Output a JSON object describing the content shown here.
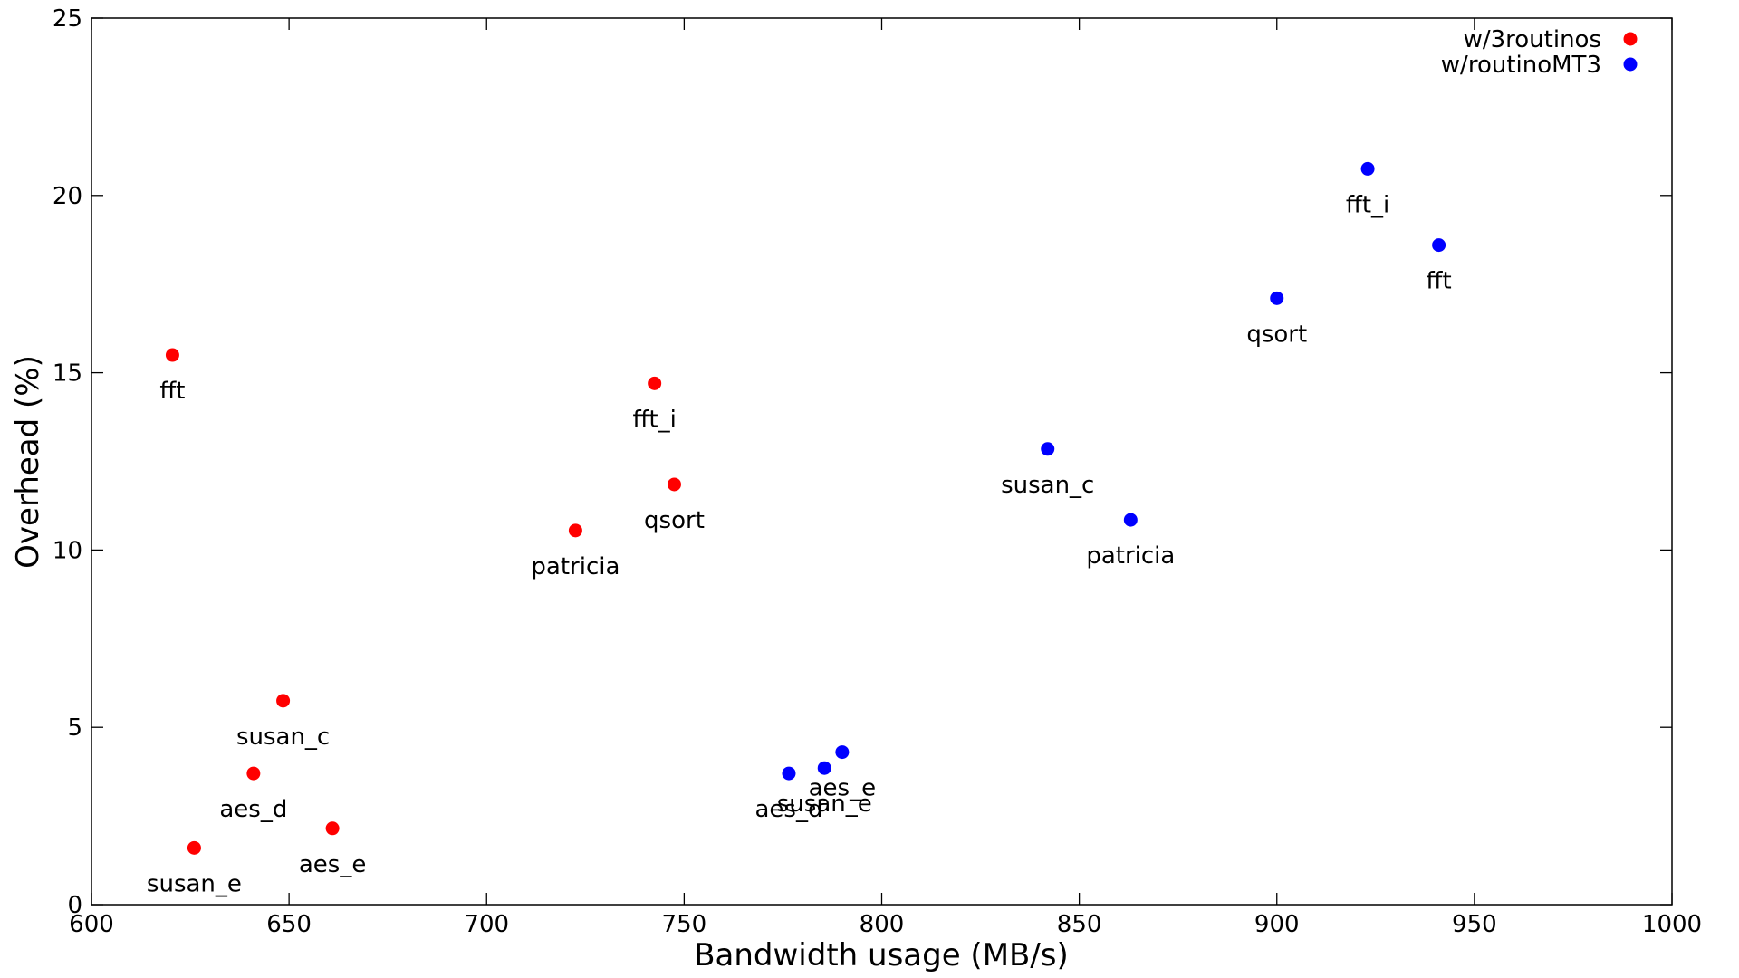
{
  "chart_data": {
    "type": "scatter",
    "title": "",
    "xlabel": "Bandwidth usage (MB/s)",
    "ylabel": "Overhead (%)",
    "xlim": [
      600,
      1000
    ],
    "ylim": [
      0,
      25
    ],
    "xticks": [
      600,
      650,
      700,
      750,
      800,
      850,
      900,
      950,
      1000
    ],
    "yticks": [
      0,
      5,
      10,
      15,
      20,
      25
    ],
    "grid": false,
    "legend_position": "top-right",
    "series": [
      {
        "name": "w/3routinos",
        "color": "#ff0000",
        "points": [
          {
            "label": "fft",
            "x": 620.5,
            "y": 15.5
          },
          {
            "label": "fft_i",
            "x": 742.5,
            "y": 14.7
          },
          {
            "label": "qsort",
            "x": 747.5,
            "y": 11.85
          },
          {
            "label": "patricia",
            "x": 722.5,
            "y": 10.55
          },
          {
            "label": "susan_c",
            "x": 648.5,
            "y": 5.75
          },
          {
            "label": "aes_d",
            "x": 641,
            "y": 3.7
          },
          {
            "label": "aes_e",
            "x": 661,
            "y": 2.15
          },
          {
            "label": "susan_e",
            "x": 626,
            "y": 1.6
          }
        ]
      },
      {
        "name": "w/routinoMT3",
        "color": "#0000ff",
        "points": [
          {
            "label": "fft_i",
            "x": 923,
            "y": 20.75
          },
          {
            "label": "fft",
            "x": 941,
            "y": 18.6
          },
          {
            "label": "qsort",
            "x": 900,
            "y": 17.1
          },
          {
            "label": "susan_c",
            "x": 842,
            "y": 12.85
          },
          {
            "label": "patricia",
            "x": 863,
            "y": 10.85
          },
          {
            "label": "aes_e",
            "x": 790,
            "y": 4.3
          },
          {
            "label": "susan_e",
            "x": 785.5,
            "y": 3.85
          },
          {
            "label": "aes_d",
            "x": 776.5,
            "y": 3.7
          }
        ]
      }
    ]
  }
}
